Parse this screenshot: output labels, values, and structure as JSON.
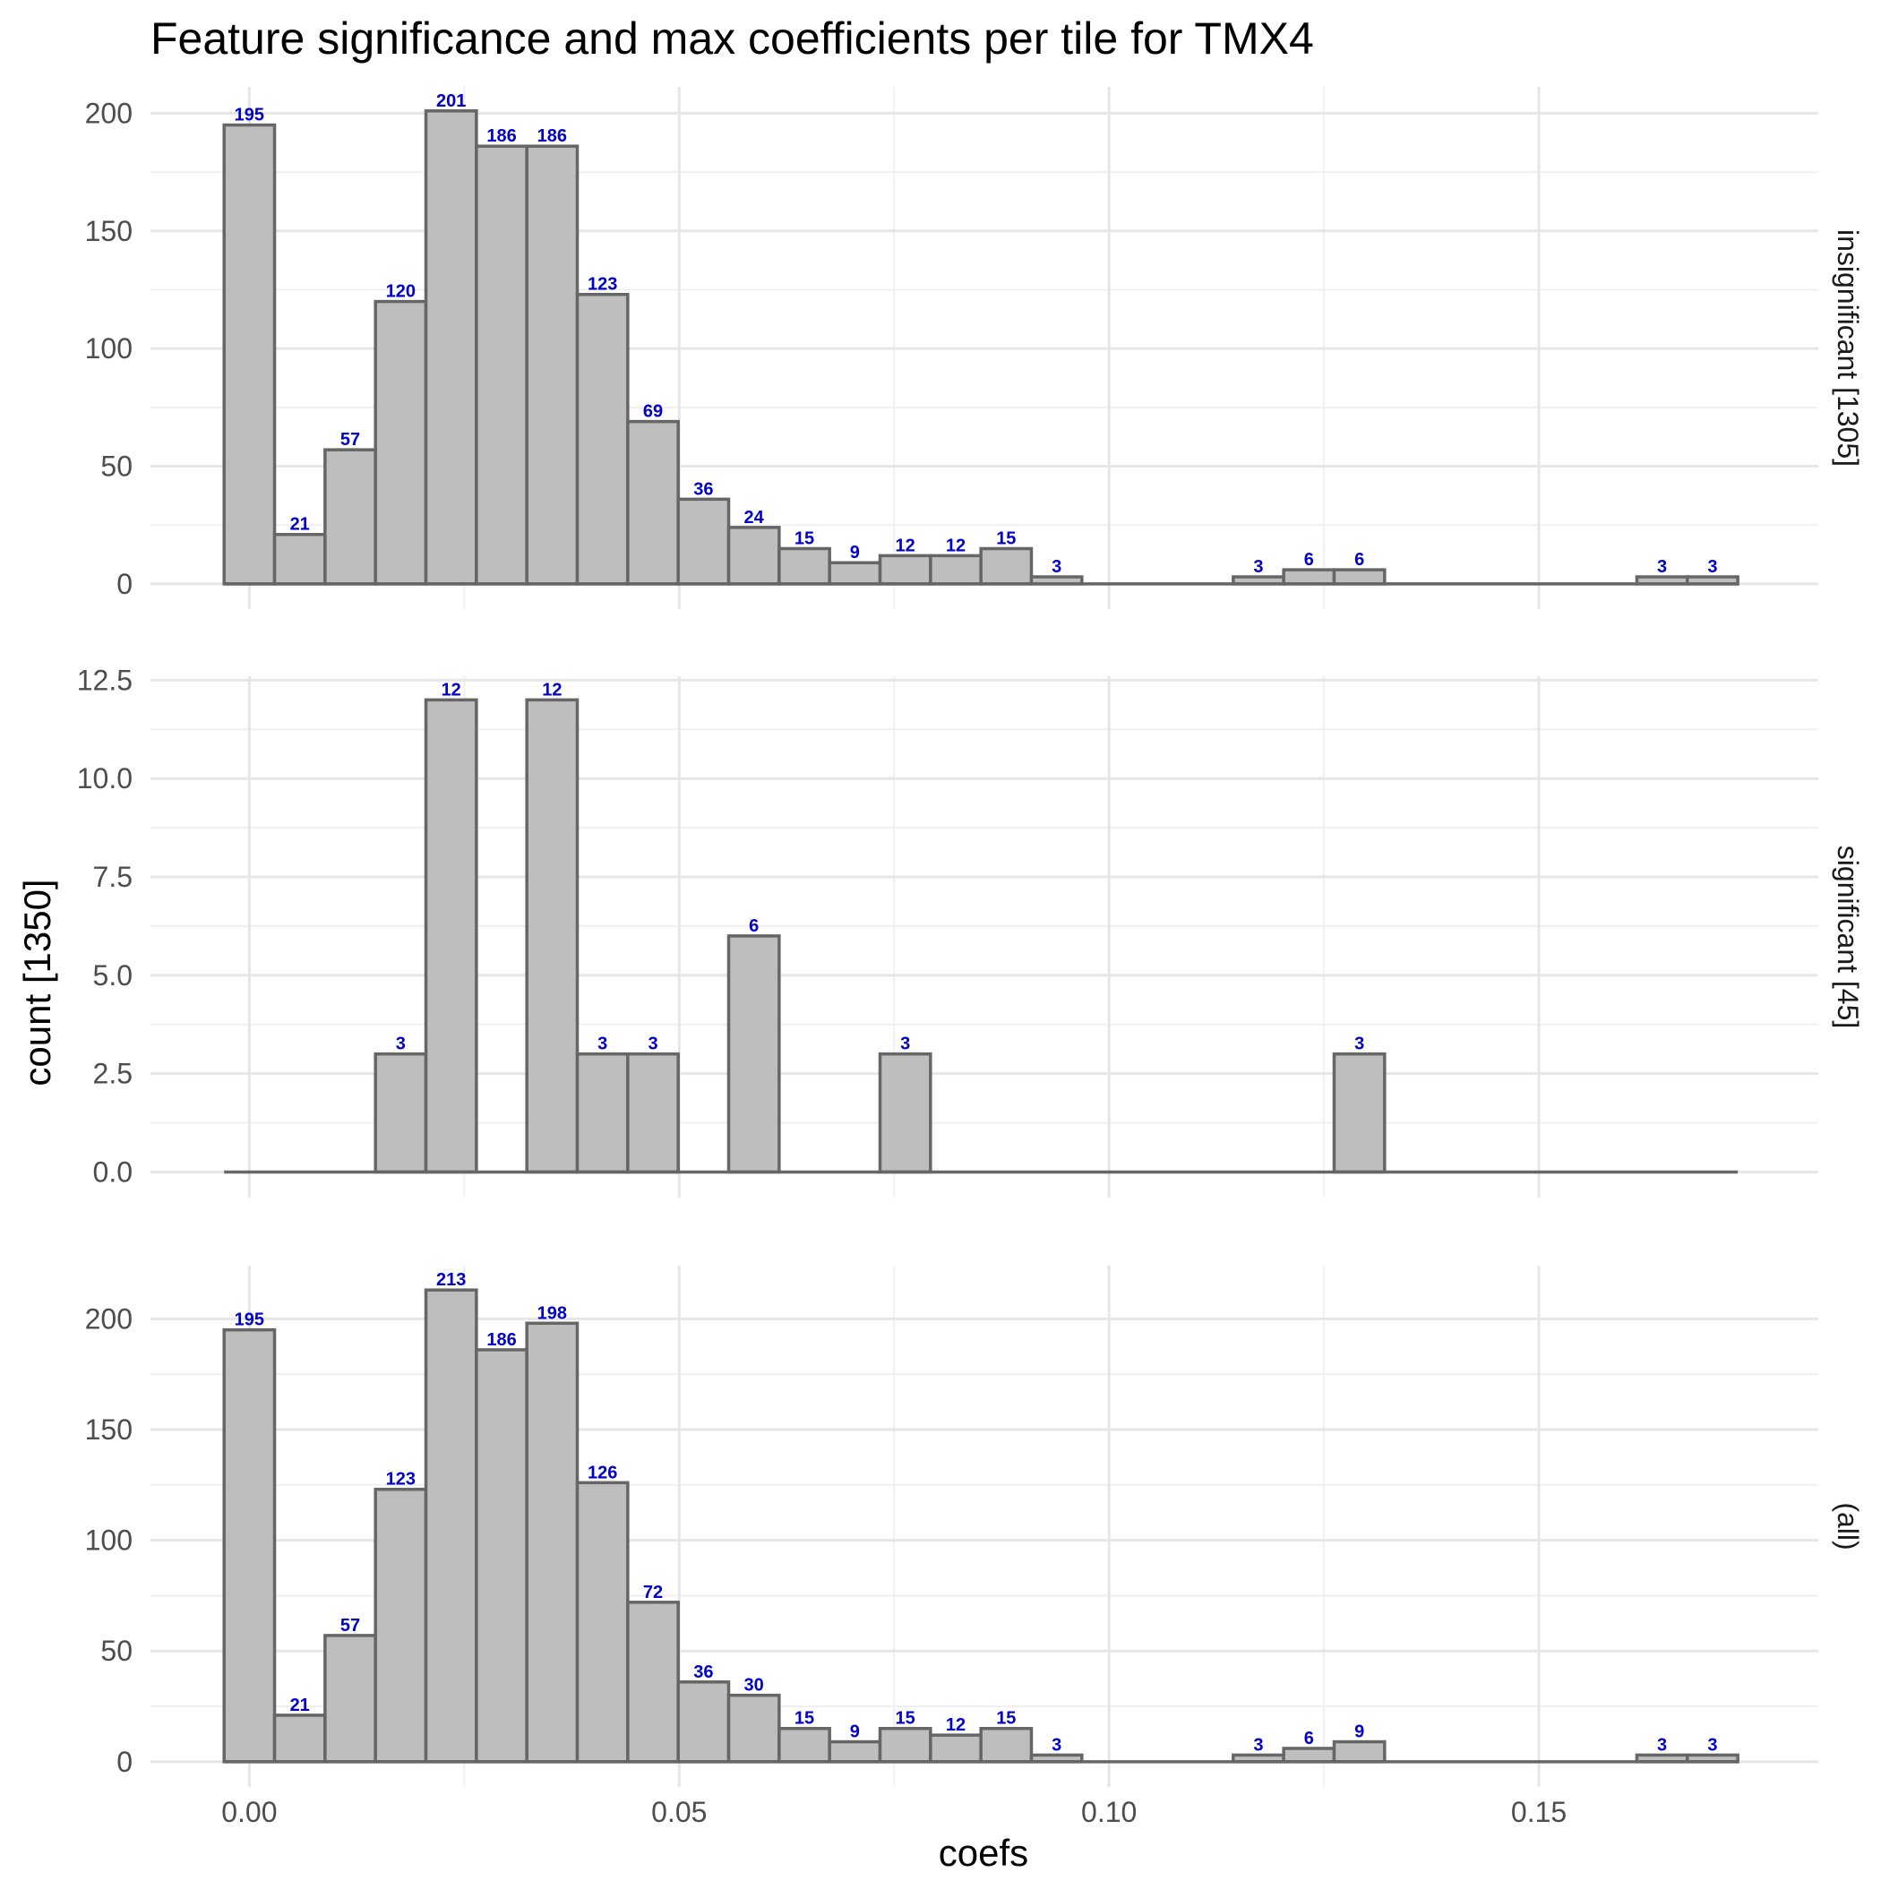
{
  "chart_data": {
    "type": "bar",
    "title": "Feature significance and max coefficients per tile for TMX4",
    "xlabel": "coefs",
    "ylabel": "count [1350]",
    "label_color": "#0000cc",
    "bar_fill": "#bebebe",
    "bar_stroke": "#666666",
    "grid": true,
    "xlim": [
      -0.0115,
      0.1825
    ],
    "x_ticks": [
      {
        "value": 0.0,
        "label": "0.00"
      },
      {
        "value": 0.05,
        "label": "0.05"
      },
      {
        "value": 0.1,
        "label": "0.10"
      },
      {
        "value": 0.15,
        "label": "0.15"
      }
    ],
    "bin_width": 0.005869,
    "bin_start": -0.002935,
    "panels": [
      {
        "label": "insignificant [1305]",
        "ylim": [
          -10.7,
          211.2
        ],
        "y_ticks": [
          {
            "value": 0,
            "label": "0"
          },
          {
            "value": 50,
            "label": "50"
          },
          {
            "value": 100,
            "label": "100"
          },
          {
            "value": 150,
            "label": "150"
          },
          {
            "value": 200,
            "label": "200"
          }
        ],
        "values": [
          195,
          21,
          57,
          120,
          201,
          186,
          186,
          123,
          69,
          36,
          24,
          15,
          9,
          12,
          12,
          15,
          3,
          0,
          0,
          0,
          3,
          6,
          6,
          0,
          0,
          0,
          0,
          0,
          3,
          3
        ]
      },
      {
        "label": "significant [45]",
        "ylim": [
          -0.65,
          12.6
        ],
        "y_ticks": [
          {
            "value": 0,
            "label": "0.0"
          },
          {
            "value": 2.5,
            "label": "2.5"
          },
          {
            "value": 5.0,
            "label": "5.0"
          },
          {
            "value": 7.5,
            "label": "7.5"
          },
          {
            "value": 10.0,
            "label": "10.0"
          },
          {
            "value": 12.5,
            "label": "12.5"
          }
        ],
        "values": [
          0,
          0,
          0,
          3,
          12,
          0,
          12,
          3,
          3,
          0,
          6,
          0,
          0,
          3,
          0,
          0,
          0,
          0,
          0,
          0,
          0,
          0,
          3,
          0,
          0,
          0,
          0,
          0,
          0,
          0
        ]
      },
      {
        "label": "(all)",
        "ylim": [
          -11.4,
          224.0
        ],
        "y_ticks": [
          {
            "value": 0,
            "label": "0"
          },
          {
            "value": 50,
            "label": "50"
          },
          {
            "value": 100,
            "label": "100"
          },
          {
            "value": 150,
            "label": "150"
          },
          {
            "value": 200,
            "label": "200"
          }
        ],
        "values": [
          195,
          21,
          57,
          123,
          213,
          186,
          198,
          126,
          72,
          36,
          30,
          15,
          9,
          15,
          12,
          15,
          3,
          0,
          0,
          0,
          3,
          6,
          9,
          0,
          0,
          0,
          0,
          0,
          3,
          3
        ]
      }
    ]
  }
}
